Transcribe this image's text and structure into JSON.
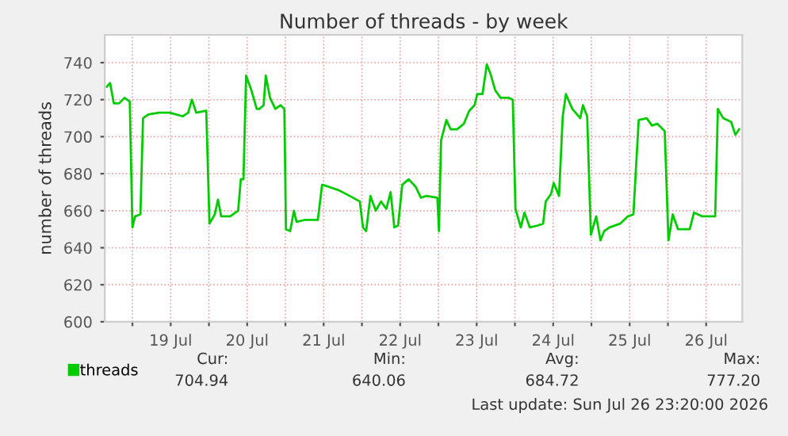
{
  "chart_data": {
    "type": "line",
    "title": "Number of threads - by week",
    "ylabel": "number of threads",
    "x": [
      "2026-07-18T16:00",
      "2026-07-18T17:00",
      "2026-07-18T18:10",
      "2026-07-18T19:50",
      "2026-07-18T21:30",
      "2026-07-18T23:10",
      "2026-07-19T00:00",
      "2026-07-19T00:50",
      "2026-07-19T02:30",
      "2026-07-19T03:20",
      "2026-07-19T05:00",
      "2026-07-19T08:20",
      "2026-07-19T11:40",
      "2026-07-19T15:50",
      "2026-07-19T17:30",
      "2026-07-19T18:40",
      "2026-07-19T20:00",
      "2026-07-19T23:10",
      "2026-07-20T00:10",
      "2026-07-20T01:50",
      "2026-07-20T02:50",
      "2026-07-20T03:50",
      "2026-07-20T06:40",
      "2026-07-20T09:10",
      "2026-07-20T10:00",
      "2026-07-20T10:50",
      "2026-07-20T11:40",
      "2026-07-20T13:20",
      "2026-07-20T15:00",
      "2026-07-20T15:50",
      "2026-07-20T17:10",
      "2026-07-20T17:50",
      "2026-07-20T19:10",
      "2026-07-20T20:50",
      "2026-07-20T22:30",
      "2026-07-20T23:40",
      "2026-07-21T00:10",
      "2026-07-21T01:30",
      "2026-07-21T02:40",
      "2026-07-21T03:30",
      "2026-07-21T06:00",
      "2026-07-21T10:10",
      "2026-07-21T11:30",
      "2026-07-21T13:30",
      "2026-07-21T16:50",
      "2026-07-21T20:10",
      "2026-07-21T23:20",
      "2026-07-22T00:20",
      "2026-07-22T01:20",
      "2026-07-22T02:40",
      "2026-07-22T04:20",
      "2026-07-22T06:00",
      "2026-07-22T07:40",
      "2026-07-22T09:00",
      "2026-07-22T10:10",
      "2026-07-22T11:20",
      "2026-07-22T12:40",
      "2026-07-22T14:40",
      "2026-07-22T16:50",
      "2026-07-22T18:30",
      "2026-07-22T20:10",
      "2026-07-22T23:40",
      "2026-07-23T00:10",
      "2026-07-23T00:50",
      "2026-07-23T02:30",
      "2026-07-23T03:50",
      "2026-07-23T05:50",
      "2026-07-23T08:00",
      "2026-07-23T09:40",
      "2026-07-23T11:20",
      "2026-07-23T12:10",
      "2026-07-23T13:50",
      "2026-07-23T15:10",
      "2026-07-23T16:20",
      "2026-07-23T17:50",
      "2026-07-23T19:30",
      "2026-07-23T22:00",
      "2026-07-23T23:20",
      "2026-07-24T00:10",
      "2026-07-24T01:50",
      "2026-07-24T03:00",
      "2026-07-24T04:40",
      "2026-07-24T07:10",
      "2026-07-24T08:50",
      "2026-07-24T09:40",
      "2026-07-24T11:20",
      "2026-07-24T12:10",
      "2026-07-24T13:50",
      "2026-07-24T15:00",
      "2026-07-24T16:00",
      "2026-07-24T18:00",
      "2026-07-24T20:30",
      "2026-07-24T21:20",
      "2026-07-24T22:40",
      "2026-07-24T23:50",
      "2026-07-25T01:30",
      "2026-07-25T02:50",
      "2026-07-25T04:00",
      "2026-07-25T05:40",
      "2026-07-25T09:00",
      "2026-07-25T11:30",
      "2026-07-25T13:10",
      "2026-07-25T14:50",
      "2026-07-25T17:20",
      "2026-07-25T19:00",
      "2026-07-25T20:40",
      "2026-07-25T23:00",
      "2026-07-26T00:10",
      "2026-07-26T01:30",
      "2026-07-26T03:10",
      "2026-07-26T04:50",
      "2026-07-26T06:50",
      "2026-07-26T08:10",
      "2026-07-26T10:40",
      "2026-07-26T14:50",
      "2026-07-26T15:40",
      "2026-07-26T17:20",
      "2026-07-26T19:50",
      "2026-07-26T21:10",
      "2026-07-26T22:20"
    ],
    "series": [
      {
        "name": "threads",
        "color": "#00cc00",
        "values": [
          727,
          729,
          718,
          718,
          721,
          719,
          651,
          657,
          658,
          710,
          712,
          713,
          713,
          711,
          713,
          720,
          713,
          714,
          653,
          658,
          666,
          657,
          657,
          660,
          677,
          677,
          733,
          725,
          715,
          715,
          717,
          733,
          721,
          715,
          717,
          715,
          650,
          649,
          660,
          654,
          655,
          655,
          674,
          673,
          671,
          668,
          665,
          651,
          649,
          668,
          660,
          665,
          661,
          670,
          651,
          652,
          674,
          677,
          673,
          667,
          668,
          667,
          649,
          698,
          709,
          704,
          704,
          707,
          714,
          717,
          723,
          723,
          739,
          734,
          725,
          721,
          721,
          720,
          661,
          651,
          659,
          651,
          652,
          653,
          665,
          669,
          675,
          668,
          711,
          723,
          715,
          710,
          717,
          711,
          647,
          657,
          644,
          649,
          651,
          653,
          657,
          658,
          709,
          710,
          706,
          707,
          703,
          644,
          658,
          650,
          650,
          650,
          659,
          657,
          657,
          715,
          710,
          708,
          701,
          704
        ]
      }
    ],
    "xlim": [
      "2026-07-18T15:20",
      "2026-07-26T23:20"
    ],
    "xticks": [
      {
        "value": "2026-07-19T00:00",
        "label": null
      },
      {
        "value": "2026-07-19T12:00",
        "label": "19 Jul"
      },
      {
        "value": "2026-07-20T00:00",
        "label": null
      },
      {
        "value": "2026-07-20T12:00",
        "label": "20 Jul"
      },
      {
        "value": "2026-07-21T00:00",
        "label": null
      },
      {
        "value": "2026-07-21T12:00",
        "label": "21 Jul"
      },
      {
        "value": "2026-07-22T00:00",
        "label": null
      },
      {
        "value": "2026-07-22T12:00",
        "label": "22 Jul"
      },
      {
        "value": "2026-07-23T00:00",
        "label": null
      },
      {
        "value": "2026-07-23T12:00",
        "label": "23 Jul"
      },
      {
        "value": "2026-07-24T00:00",
        "label": null
      },
      {
        "value": "2026-07-24T12:00",
        "label": "24 Jul"
      },
      {
        "value": "2026-07-25T00:00",
        "label": null
      },
      {
        "value": "2026-07-25T12:00",
        "label": "25 Jul"
      },
      {
        "value": "2026-07-26T00:00",
        "label": null
      },
      {
        "value": "2026-07-26T12:00",
        "label": "26 Jul"
      }
    ],
    "ylim": [
      600,
      755
    ],
    "yticks": [
      600,
      620,
      640,
      660,
      680,
      700,
      720,
      740
    ],
    "grid": true,
    "legend": "bottom left",
    "annotations": [
      "Cur:",
      "704.94",
      "Min:",
      "640.06",
      "Avg:",
      "684.72",
      "Max:",
      "777.20",
      "Last update: Sun Jul 26 23:20:00 2026"
    ]
  }
}
